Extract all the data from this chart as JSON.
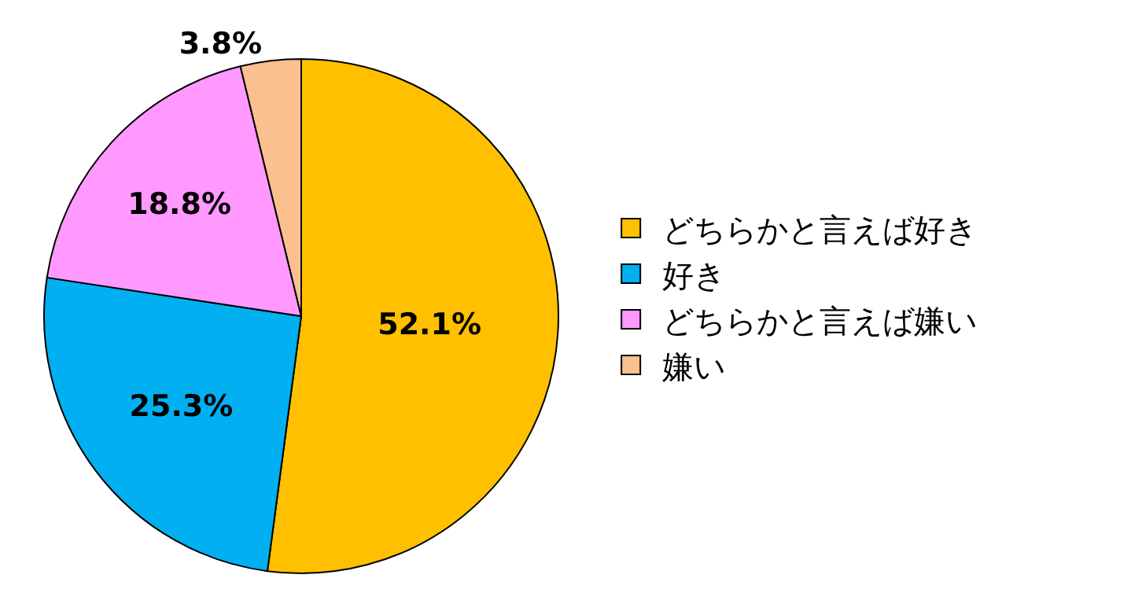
{
  "chart_data": {
    "type": "pie",
    "categories": [
      "どちらかと言えば好き",
      "好き",
      "どちらかと言えば嫌い",
      "嫌い"
    ],
    "values": [
      52.1,
      25.3,
      18.8,
      3.8
    ],
    "colors": [
      "#ffc000",
      "#00b0f0",
      "#ff99ff",
      "#fac090"
    ],
    "value_labels": [
      "52.1%",
      "25.3%",
      "18.8%",
      "3.8%"
    ],
    "legend": "right"
  }
}
